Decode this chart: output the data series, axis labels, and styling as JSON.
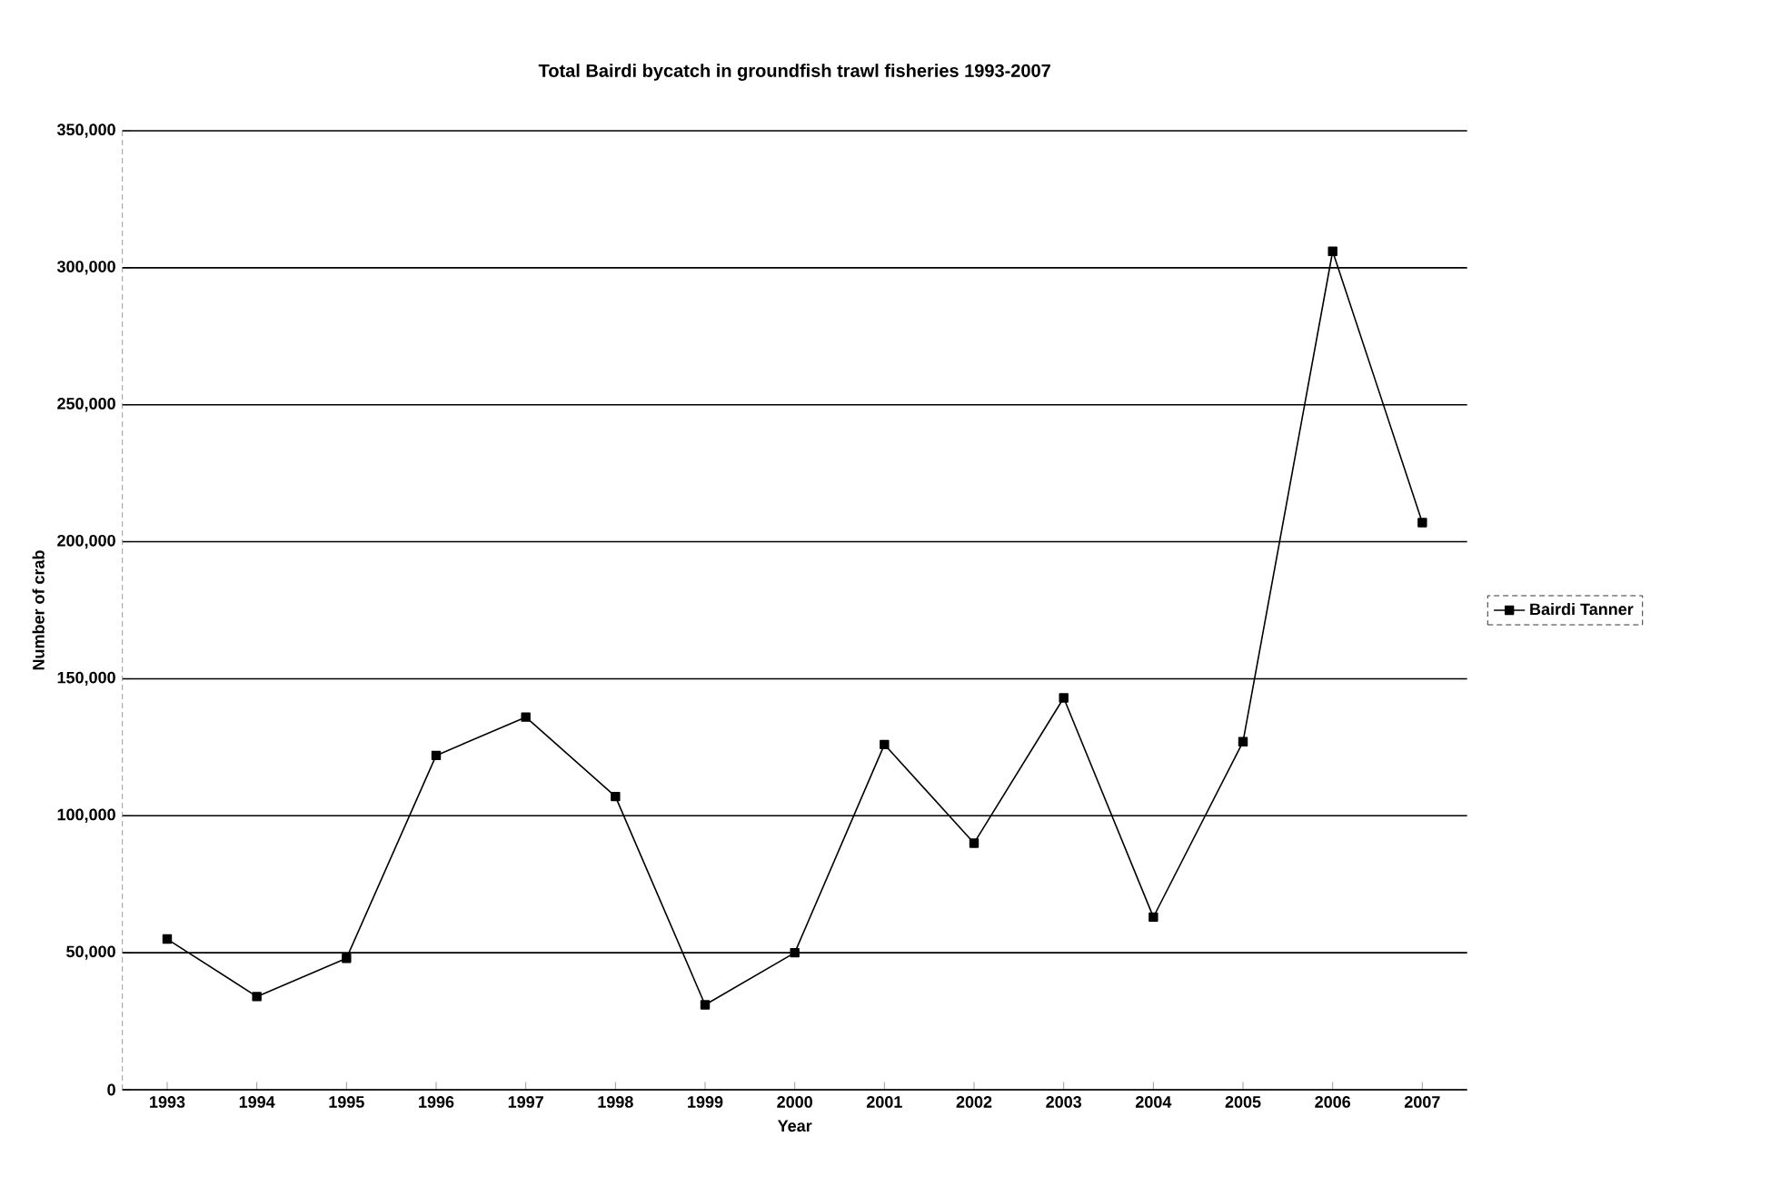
{
  "chart_data": {
    "type": "line",
    "title": "Total Bairdi bycatch in groundfish trawl fisheries 1993-2007",
    "xlabel": "Year",
    "ylabel": "Number of crab",
    "categories": [
      "1993",
      "1994",
      "1995",
      "1996",
      "1997",
      "1998",
      "1999",
      "2000",
      "2001",
      "2002",
      "2003",
      "2004",
      "2005",
      "2006",
      "2007"
    ],
    "series": [
      {
        "name": "Bairdi Tanner",
        "color": "#000000",
        "values": [
          55000,
          34000,
          48000,
          122000,
          136000,
          107000,
          31000,
          50000,
          126000,
          90000,
          143000,
          63000,
          127000,
          306000,
          207000
        ]
      }
    ],
    "ylim": [
      0,
      350000
    ],
    "yticks": [
      {
        "value": 0,
        "label": "0"
      },
      {
        "value": 50000,
        "label": "50,000"
      },
      {
        "value": 100000,
        "label": "100,000"
      },
      {
        "value": 150000,
        "label": "150,000"
      },
      {
        "value": 200000,
        "label": "200,000"
      },
      {
        "value": 250000,
        "label": "250,000"
      },
      {
        "value": 300000,
        "label": "300,000"
      },
      {
        "value": 350000,
        "label": "350,000"
      }
    ],
    "grid": "y",
    "legend": "right",
    "marker": "square",
    "line_style": "solid"
  }
}
